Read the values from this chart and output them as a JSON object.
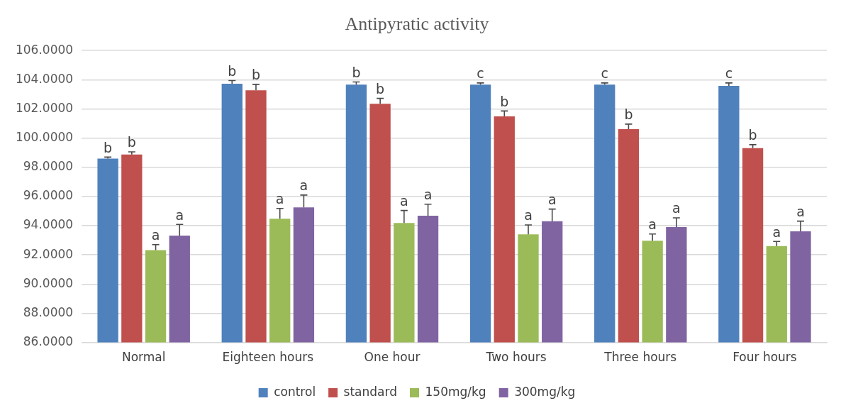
{
  "chart_data": {
    "type": "bar",
    "title": "Antipyratic activity",
    "categories": [
      "Normal",
      "Eighteen hours",
      "One hour",
      "Two hours",
      "Three hours",
      "Four hours"
    ],
    "series": [
      {
        "name": "control",
        "color": "#4f81bd",
        "values": [
          98.6,
          103.72,
          103.67,
          103.67,
          103.67,
          103.58
        ],
        "errors": [
          [
            98.6,
            98.7
          ],
          [
            103.72,
            103.94
          ],
          [
            103.67,
            103.85
          ],
          [
            103.67,
            103.78
          ],
          [
            103.67,
            103.78
          ],
          [
            103.58,
            103.78
          ]
        ],
        "value_labels": [
          "b",
          "b",
          "b",
          "c",
          "c",
          "c"
        ]
      },
      {
        "name": "standard",
        "color": "#c0504d",
        "values": [
          98.88,
          103.28,
          102.35,
          101.49,
          100.61,
          99.31
        ],
        "errors": [
          [
            98.88,
            99.06
          ],
          [
            103.28,
            103.68
          ],
          [
            102.35,
            102.72
          ],
          [
            101.49,
            101.86
          ],
          [
            100.61,
            100.96
          ],
          [
            99.31,
            99.55
          ]
        ],
        "value_labels": [
          "b",
          "b",
          "b",
          "b",
          "b",
          "b"
        ]
      },
      {
        "name": "150mg/kg",
        "color": "#9bbb59",
        "values": [
          92.33,
          94.48,
          94.18,
          93.41,
          92.97,
          92.61
        ],
        "errors": [
          [
            92.33,
            92.7
          ],
          [
            94.48,
            95.18
          ],
          [
            94.18,
            95.04
          ],
          [
            93.41,
            94.05
          ],
          [
            92.97,
            93.43
          ],
          [
            92.61,
            92.92
          ]
        ],
        "value_labels": [
          "a",
          "a",
          "a",
          "a",
          "a",
          "a"
        ]
      },
      {
        "name": "300mg/kg",
        "color": "#8064a2",
        "values": [
          93.32,
          95.25,
          94.68,
          94.31,
          93.9,
          93.61
        ],
        "errors": [
          [
            93.32,
            94.09
          ],
          [
            95.25,
            96.1
          ],
          [
            94.68,
            95.47
          ],
          [
            94.31,
            95.14
          ],
          [
            93.9,
            94.54
          ],
          [
            93.61,
            94.31
          ]
        ],
        "value_labels": [
          "a",
          "a",
          "a",
          "a",
          "a",
          "a"
        ]
      }
    ],
    "ylim": [
      86,
      106
    ],
    "yticks": [
      {
        "value": 86,
        "label": "86.0000"
      },
      {
        "value": 88,
        "label": "88.0000"
      },
      {
        "value": 90,
        "label": "90.0000"
      },
      {
        "value": 92,
        "label": "92.0000"
      },
      {
        "value": 94,
        "label": "94.0000"
      },
      {
        "value": 96,
        "label": "96.0000"
      },
      {
        "value": 98,
        "label": "98.0000"
      },
      {
        "value": 100,
        "label": "100.0000"
      },
      {
        "value": 102,
        "label": "102.0000"
      },
      {
        "value": 104,
        "label": "104.0000"
      },
      {
        "value": 106,
        "label": "106.0000"
      }
    ],
    "grid": "y",
    "legend": "bottom"
  }
}
